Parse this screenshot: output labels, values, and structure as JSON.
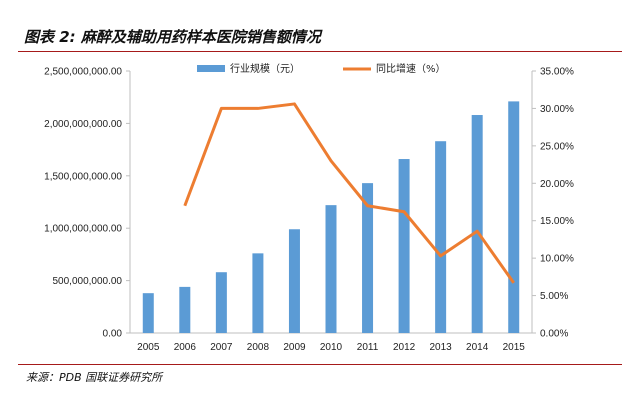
{
  "header": {
    "title": "图表 2: 麻醉及辅助用药样本医院销售额情况"
  },
  "footer": {
    "source": "来源：PDB 国联证券研究所"
  },
  "chart_data": {
    "type": "bar",
    "categories": [
      "2005",
      "2006",
      "2007",
      "2008",
      "2009",
      "2010",
      "2011",
      "2012",
      "2013",
      "2014",
      "2015"
    ],
    "series": [
      {
        "name": "行业规模（元）",
        "type": "bar",
        "axis": "left",
        "color": "#5b9bd5",
        "values": [
          380000000,
          440000000,
          580000000,
          760000000,
          990000000,
          1220000000,
          1430000000,
          1660000000,
          1830000000,
          2080000000,
          2210000000
        ]
      },
      {
        "name": "同比增速（%）",
        "type": "line",
        "axis": "right",
        "color": "#ed7d31",
        "values": [
          null,
          17.0,
          30.0,
          30.0,
          30.6,
          23.0,
          17.0,
          16.2,
          10.3,
          13.6,
          6.7
        ]
      }
    ],
    "y_left": {
      "min": 0,
      "max": 2500000000,
      "ticks": [
        "0.00",
        "500,000,000.00",
        "1,000,000,000.00",
        "1,500,000,000.00",
        "2,000,000,000.00",
        "2,500,000,000.00"
      ]
    },
    "y_right": {
      "min": 0,
      "max": 35,
      "ticks": [
        "0.00%",
        "5.00%",
        "10.00%",
        "15.00%",
        "20.00%",
        "25.00%",
        "30.00%",
        "35.00%"
      ]
    },
    "legend_position": "top",
    "grid": false
  }
}
